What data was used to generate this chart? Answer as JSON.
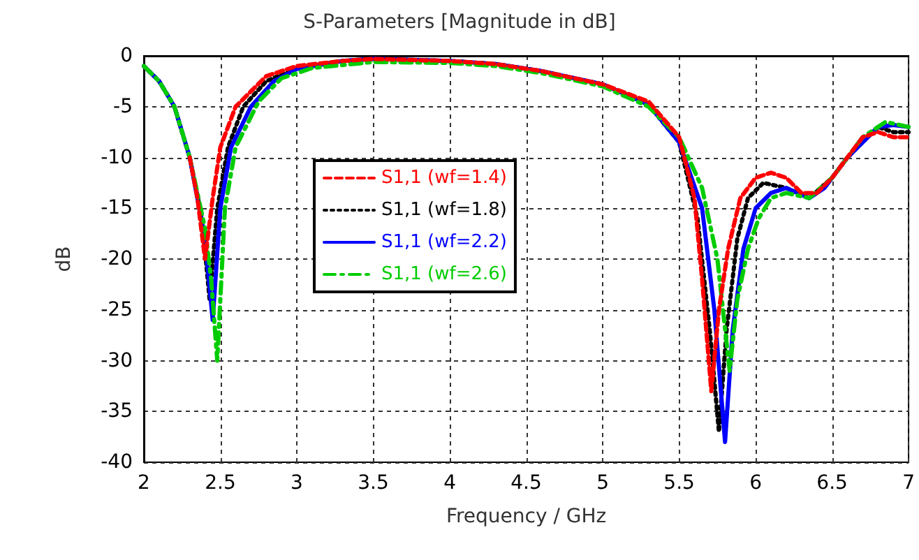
{
  "chart_data": {
    "type": "line",
    "title": "S-Parameters [Magnitude in dB]",
    "xlabel": "Frequency / GHz",
    "ylabel": "dB",
    "xlim": [
      2,
      7
    ],
    "xticks": [
      2,
      2.5,
      3,
      3.5,
      4,
      4.5,
      5,
      5.5,
      6,
      6.5,
      7
    ],
    "ylim": [
      -40,
      0
    ],
    "yticks": [
      -40,
      -35,
      -30,
      -25,
      -20,
      -15,
      -10,
      -5,
      0
    ],
    "grid": true,
    "legend": "left",
    "marker": "none",
    "series": [
      {
        "name": "S1,1 (wf=1.4)",
        "color": "#ff0000",
        "line_style": "dashed",
        "x": [
          2.3,
          2.35,
          2.4,
          2.45,
          2.5,
          2.6,
          2.8,
          3,
          3.3,
          3.5,
          4,
          4.3,
          4.6,
          5,
          5.3,
          5.5,
          5.6,
          5.65,
          5.71,
          5.76,
          5.82,
          5.9,
          6,
          6.1,
          6.2,
          6.3,
          6.4,
          6.5,
          6.6,
          6.7,
          6.8,
          6.9,
          7
        ],
        "values": [
          -10,
          -14,
          -20,
          -14,
          -9,
          -5,
          -2,
          -1,
          -0.5,
          -0.3,
          -0.5,
          -0.8,
          -1.5,
          -2.8,
          -4.5,
          -8,
          -14,
          -22,
          -33,
          -25,
          -19,
          -14,
          -12,
          -11.5,
          -12,
          -13.5,
          -13.5,
          -12,
          -10,
          -8,
          -7.5,
          -8,
          -8
        ]
      },
      {
        "name": "S1,1 (wf=1.8)",
        "color": "#000000",
        "line_style": "dotted",
        "x": [
          2,
          2.1,
          2.2,
          2.3,
          2.38,
          2.43,
          2.48,
          2.55,
          2.65,
          2.8,
          3,
          3.3,
          3.5,
          4,
          4.3,
          4.6,
          5,
          5.3,
          5.5,
          5.62,
          5.7,
          5.76,
          5.81,
          5.88,
          5.95,
          6.05,
          6.2,
          6.35,
          6.5,
          6.6,
          6.7,
          6.8,
          6.9,
          7
        ],
        "values": [
          -1,
          -2.5,
          -5,
          -10,
          -16,
          -24,
          -15,
          -9,
          -5,
          -2.5,
          -1.2,
          -0.5,
          -0.3,
          -0.5,
          -0.8,
          -1.5,
          -2.8,
          -4.8,
          -8.5,
          -16,
          -27,
          -37,
          -27,
          -18,
          -14,
          -12.5,
          -13,
          -14,
          -12,
          -10,
          -8.5,
          -7,
          -7.5,
          -7.5
        ]
      },
      {
        "name": "S1,1 (wf=2.2)",
        "color": "#0000ff",
        "line_style": "solid",
        "x": [
          2,
          2.1,
          2.2,
          2.3,
          2.4,
          2.45,
          2.5,
          2.57,
          2.7,
          2.85,
          3,
          3.3,
          3.5,
          4,
          4.3,
          4.6,
          5,
          5.3,
          5.5,
          5.65,
          5.73,
          5.8,
          5.85,
          5.92,
          6,
          6.1,
          6.2,
          6.35,
          6.45,
          6.6,
          6.8,
          6.9,
          7
        ],
        "values": [
          -1,
          -2.5,
          -5,
          -10,
          -18,
          -26,
          -15,
          -9,
          -5,
          -2.5,
          -1.3,
          -0.5,
          -0.3,
          -0.5,
          -0.8,
          -1.5,
          -2.8,
          -4.8,
          -8.5,
          -15,
          -25,
          -38,
          -27,
          -19,
          -15,
          -13.5,
          -13,
          -14,
          -13,
          -10,
          -7,
          -6.8,
          -7
        ]
      },
      {
        "name": "S1,1 (wf=2.6)",
        "color": "#00cc00",
        "line_style": "dashdot",
        "x": [
          2,
          2.1,
          2.2,
          2.3,
          2.4,
          2.44,
          2.48,
          2.53,
          2.6,
          2.75,
          2.9,
          3.1,
          3.5,
          4,
          4.3,
          4.6,
          5,
          5.3,
          5.5,
          5.65,
          5.75,
          5.83,
          5.88,
          5.95,
          6.02,
          6.1,
          6.2,
          6.35,
          6.5,
          6.7,
          6.85,
          7
        ],
        "values": [
          -1,
          -2.5,
          -5,
          -10,
          -17,
          -22,
          -30,
          -15,
          -9,
          -4.5,
          -2.2,
          -1.2,
          -0.6,
          -0.7,
          -1,
          -1.7,
          -3,
          -5,
          -8,
          -13,
          -20,
          -31,
          -24,
          -19,
          -16,
          -14,
          -13.5,
          -14,
          -12,
          -8,
          -6.5,
          -7
        ]
      }
    ]
  }
}
